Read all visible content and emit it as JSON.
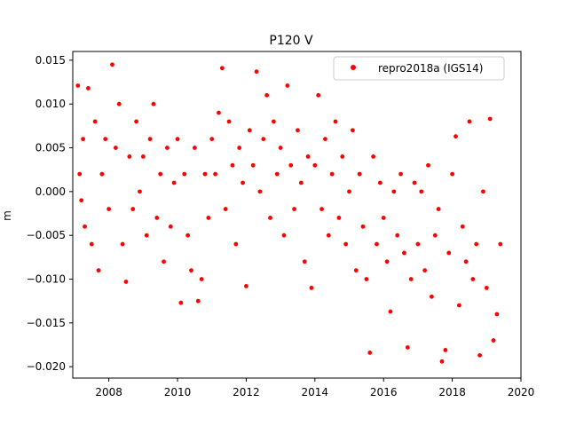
{
  "chart_data": {
    "type": "scatter",
    "title": "P120 V",
    "xlabel": "",
    "ylabel": "m",
    "xlim": [
      2006.95,
      2020.0
    ],
    "ylim": [
      -0.0213,
      0.016
    ],
    "xticks": [
      2008,
      2010,
      2012,
      2014,
      2016,
      2018,
      2020
    ],
    "xtick_labels": [
      "2008",
      "2010",
      "2012",
      "2014",
      "2016",
      "2018",
      "2020"
    ],
    "yticks": [
      -0.02,
      -0.015,
      -0.01,
      -0.005,
      0.0,
      0.005,
      0.01,
      0.015
    ],
    "ytick_labels": [
      "−0.020",
      "−0.015",
      "−0.010",
      "−0.005",
      "0.000",
      "0.005",
      "0.010",
      "0.015"
    ],
    "grid": false,
    "legend": {
      "position": "top-right",
      "entries": [
        "repro2018a (IGS14)"
      ]
    },
    "series": [
      {
        "name": "repro2018a (IGS14)",
        "color": "#ff0000",
        "marker": "circle",
        "x": [
          2007.1,
          2007.15,
          2007.2,
          2007.25,
          2007.3,
          2007.4,
          2007.5,
          2007.6,
          2007.7,
          2007.8,
          2007.9,
          2008.0,
          2008.1,
          2008.2,
          2008.3,
          2008.4,
          2008.5,
          2008.6,
          2008.7,
          2008.8,
          2008.9,
          2009.0,
          2009.1,
          2009.2,
          2009.3,
          2009.4,
          2009.5,
          2009.6,
          2009.7,
          2009.8,
          2009.9,
          2010.0,
          2010.1,
          2010.2,
          2010.3,
          2010.4,
          2010.5,
          2010.6,
          2010.7,
          2010.8,
          2010.9,
          2011.0,
          2011.1,
          2011.2,
          2011.3,
          2011.4,
          2011.5,
          2011.6,
          2011.7,
          2011.8,
          2011.9,
          2012.0,
          2012.1,
          2012.2,
          2012.3,
          2012.4,
          2012.5,
          2012.6,
          2012.7,
          2012.8,
          2012.9,
          2013.0,
          2013.1,
          2013.2,
          2013.3,
          2013.4,
          2013.5,
          2013.6,
          2013.7,
          2013.8,
          2013.9,
          2014.0,
          2014.1,
          2014.2,
          2014.3,
          2014.4,
          2014.5,
          2014.6,
          2014.7,
          2014.8,
          2014.9,
          2015.0,
          2015.1,
          2015.2,
          2015.3,
          2015.4,
          2015.5,
          2015.6,
          2015.7,
          2015.8,
          2015.9,
          2016.0,
          2016.1,
          2016.2,
          2016.3,
          2016.4,
          2016.5,
          2016.6,
          2016.7,
          2016.8,
          2016.9,
          2017.0,
          2017.1,
          2017.2,
          2017.3,
          2017.4,
          2017.5,
          2017.6,
          2017.7,
          2017.8,
          2017.9,
          2018.0,
          2018.1,
          2018.2,
          2018.3,
          2018.4,
          2018.5,
          2018.6,
          2018.7,
          2018.8,
          2018.9,
          2019.0,
          2019.1,
          2019.2,
          2019.3,
          2019.4
        ],
        "y": [
          0.0121,
          0.002,
          -0.001,
          0.006,
          -0.004,
          0.0118,
          -0.006,
          0.008,
          -0.009,
          0.002,
          0.006,
          -0.002,
          0.0145,
          0.005,
          0.01,
          -0.006,
          -0.0103,
          0.004,
          -0.002,
          0.008,
          0.0,
          0.004,
          -0.005,
          0.006,
          0.01,
          -0.003,
          0.002,
          -0.008,
          0.005,
          -0.004,
          0.001,
          0.006,
          -0.0127,
          0.002,
          -0.005,
          -0.009,
          0.005,
          -0.0125,
          -0.01,
          0.002,
          -0.003,
          0.006,
          0.002,
          0.009,
          0.0141,
          -0.002,
          0.008,
          0.003,
          -0.006,
          0.005,
          0.001,
          -0.0108,
          0.007,
          0.003,
          0.0137,
          0.0,
          0.006,
          0.011,
          -0.003,
          0.008,
          0.002,
          0.005,
          -0.005,
          0.0121,
          0.003,
          -0.002,
          0.007,
          0.001,
          -0.008,
          0.004,
          -0.011,
          0.003,
          0.011,
          -0.002,
          0.006,
          -0.005,
          0.002,
          0.008,
          -0.003,
          0.004,
          -0.006,
          0.0,
          0.007,
          -0.009,
          0.002,
          -0.004,
          -0.01,
          -0.0184,
          0.004,
          -0.006,
          0.001,
          -0.003,
          -0.008,
          -0.0137,
          0.0,
          -0.005,
          0.002,
          -0.007,
          -0.0178,
          -0.01,
          0.001,
          -0.006,
          0.0,
          -0.009,
          0.003,
          -0.012,
          -0.005,
          -0.002,
          -0.0194,
          -0.0181,
          -0.007,
          0.002,
          0.0063,
          -0.013,
          -0.004,
          -0.008,
          0.008,
          -0.01,
          -0.006,
          -0.0187,
          0.0,
          -0.011,
          0.0083,
          -0.017,
          -0.014,
          -0.006
        ]
      }
    ]
  }
}
